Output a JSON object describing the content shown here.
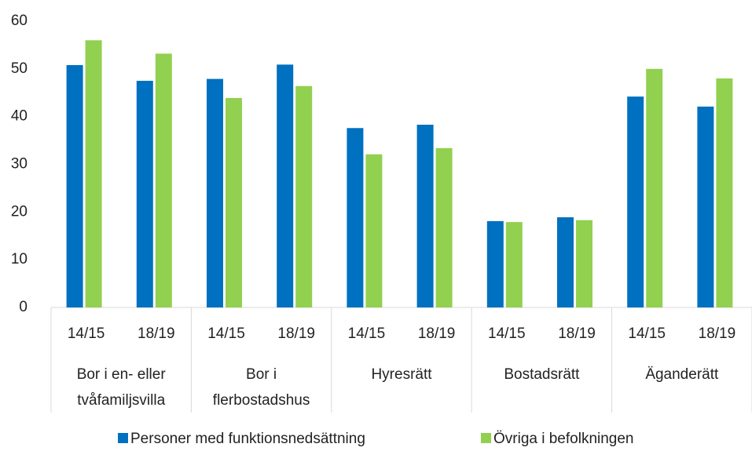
{
  "chart_data": {
    "type": "bar",
    "categories": [
      "14/15",
      "18/19",
      "14/15",
      "18/19",
      "14/15",
      "18/19",
      "14/15",
      "18/19",
      "14/15",
      "18/19"
    ],
    "groups": [
      [
        "Bor i en- eller",
        "tvåfamiljsvilla"
      ],
      [
        "Bor i",
        "flerbostadshus"
      ],
      [
        "Hyresrätt"
      ],
      [
        "Bostadsrätt"
      ],
      [
        "Äganderätt"
      ]
    ],
    "series": [
      {
        "name": "Personer med funktionsnedsättning",
        "color": "#0070c0",
        "values": [
          50.8,
          47.5,
          47.9,
          50.9,
          37.6,
          38.3,
          18.1,
          18.9,
          44.2,
          42.1
        ]
      },
      {
        "name": "Övriga i befolkningen",
        "color": "#92d050",
        "values": [
          56,
          53.2,
          43.9,
          46.4,
          32.1,
          33.4,
          17.9,
          18.3,
          50,
          48
        ]
      }
    ],
    "ylim": [
      0,
      60
    ],
    "yticks": [
      0,
      10,
      20,
      30,
      40,
      50,
      60
    ],
    "grid": false,
    "legend": "bottom"
  }
}
